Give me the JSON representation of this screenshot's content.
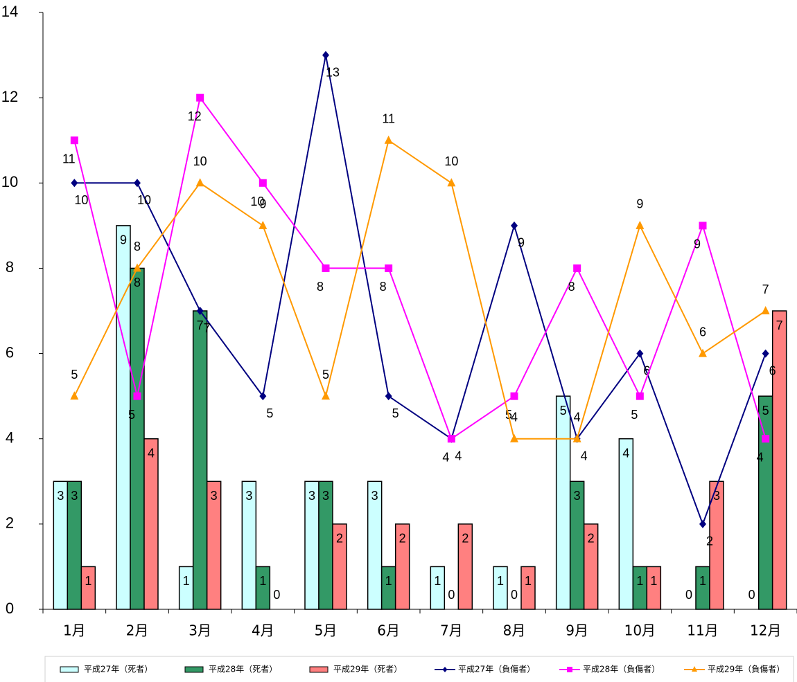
{
  "chart_data": {
    "type": "bar",
    "title": "",
    "xlabel": "",
    "ylabel": "",
    "ylim": [
      0,
      14
    ],
    "yticks": [
      0,
      2,
      4,
      6,
      8,
      10,
      12,
      14
    ],
    "grid": false,
    "legend_position": "bottom",
    "categories": [
      "1月",
      "2月",
      "3月",
      "4月",
      "5月",
      "6月",
      "7月",
      "8月",
      "9月",
      "10月",
      "11月",
      "12月"
    ],
    "bar_series": [
      {
        "name": "平成27年（死者）",
        "color": "#CCFFFF",
        "values": [
          3,
          9,
          1,
          3,
          3,
          3,
          1,
          1,
          5,
          4,
          0,
          0
        ]
      },
      {
        "name": "平成28年（死者）",
        "color": "#339966",
        "values": [
          3,
          8,
          7,
          1,
          3,
          1,
          0,
          0,
          3,
          1,
          1,
          5
        ]
      },
      {
        "name": "平成29年（死者）",
        "color": "#FF8080",
        "values": [
          1,
          4,
          3,
          0,
          2,
          2,
          2,
          1,
          2,
          1,
          3,
          7
        ]
      }
    ],
    "line_series": [
      {
        "name": "平成27年（負傷者）",
        "color": "#000080",
        "marker": "diamond",
        "values": [
          10,
          10,
          7,
          5,
          13,
          5,
          4,
          9,
          4,
          6,
          2,
          6
        ]
      },
      {
        "name": "平成28年（負傷者）",
        "color": "#FF00FF",
        "marker": "square",
        "values": [
          11,
          5,
          12,
          10,
          8,
          8,
          4,
          5,
          8,
          5,
          9,
          4
        ]
      },
      {
        "name": "平成29年（負傷者）",
        "color": "#FF9900",
        "marker": "triangle",
        "values": [
          5,
          8,
          10,
          9,
          5,
          11,
          10,
          4,
          4,
          9,
          6,
          7
        ]
      }
    ]
  }
}
